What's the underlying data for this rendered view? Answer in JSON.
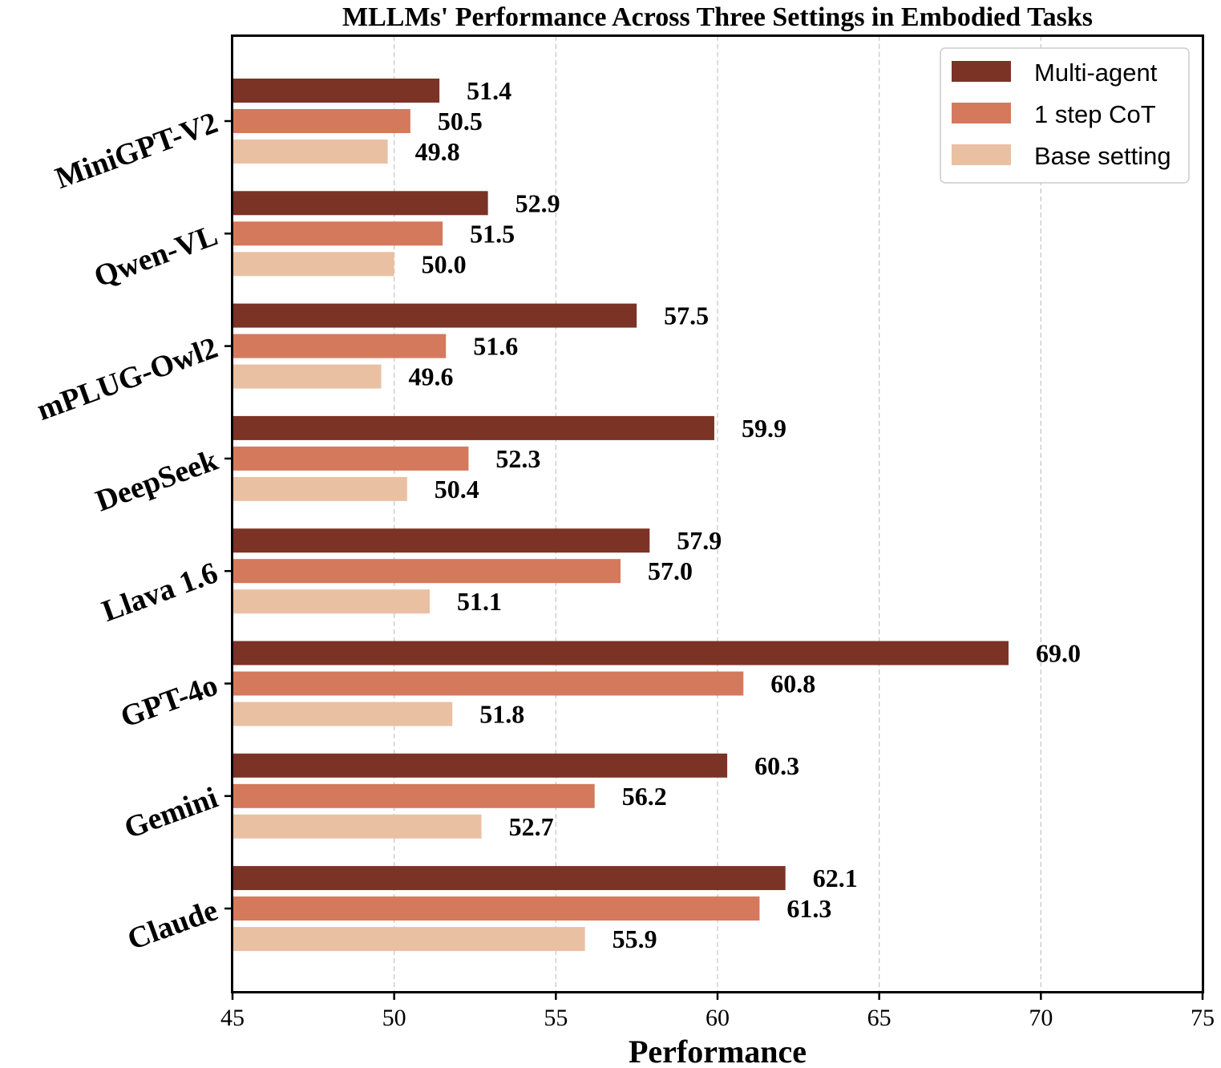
{
  "chart_data": {
    "type": "bar",
    "orientation": "horizontal",
    "title": "MLLMs' Performance Across Three Settings in Embodied Tasks",
    "xlabel": "Performance",
    "ylabel": "",
    "xlim": [
      45,
      75
    ],
    "xticks": [
      45,
      50,
      55,
      60,
      65,
      70,
      75
    ],
    "grid": "vertical dashed",
    "legend_position": "top-right",
    "categories": [
      "MiniGPT-V2",
      "Qwen-VL",
      "mPLUG-Owl2",
      "DeepSeek",
      "Llava 1.6",
      "GPT-4o",
      "Gemini",
      "Claude"
    ],
    "series": [
      {
        "name": "Multi-agent",
        "color": "#7b3325",
        "values": [
          51.4,
          52.9,
          57.5,
          59.9,
          57.9,
          69.0,
          60.3,
          62.1
        ]
      },
      {
        "name": "1 step CoT",
        "color": "#d4795c",
        "values": [
          50.5,
          51.5,
          51.6,
          52.3,
          57.0,
          60.8,
          56.2,
          61.3
        ]
      },
      {
        "name": "Base setting",
        "color": "#eac0a3",
        "values": [
          49.8,
          50.0,
          49.6,
          50.4,
          51.1,
          51.8,
          52.7,
          55.9
        ]
      }
    ]
  }
}
